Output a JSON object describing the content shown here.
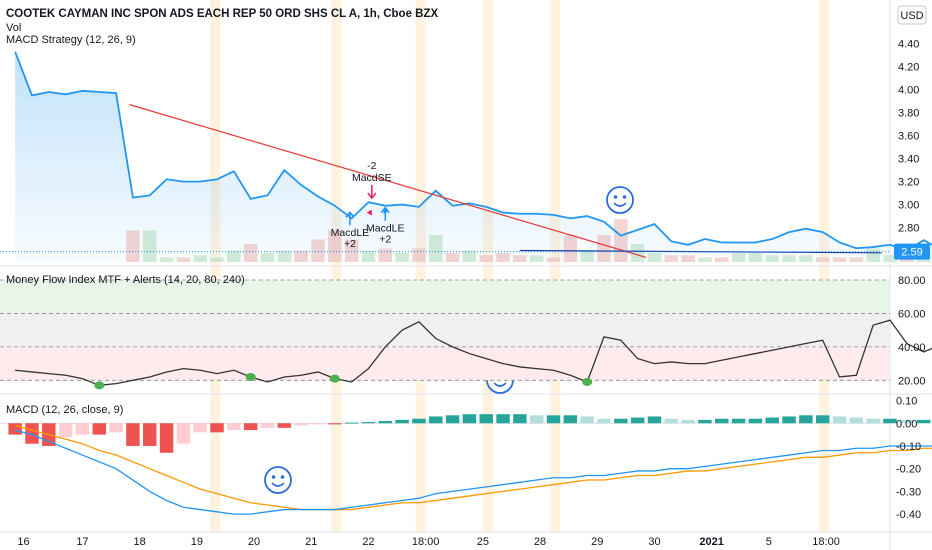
{
  "header": {
    "title": "COOTEK CAYMAN INC SPON ADS EACH REP 50 ORD SHS CL A, 1h, Cboe BZX",
    "vol_label": "Vol",
    "strategy_label": "MACD Strategy (12, 26, 9)",
    "currency_button": "USD"
  },
  "colors": {
    "price_line": "#2196f3",
    "trend_line": "#e53935",
    "macd_line": "#2196f3",
    "signal_line": "#ff9800",
    "mfi_line": "#333333",
    "hist_pos_strong": "#26a69a",
    "hist_pos_weak": "#b2dfdb",
    "hist_neg_strong": "#ef5350",
    "hist_neg_weak": "#ffcdd2",
    "mfi_marker": "#4caf50",
    "price_badge": "#2196f3",
    "session_band": "#fff3e0"
  },
  "icons": [
    "smiley-icon"
  ],
  "chart_data": [
    {
      "type": "line",
      "name": "price-pane",
      "title": "COOTEK CAYMAN INC SPON ADS EACH REP 50 ORD SHS CL A, 1h, Cboe BZX",
      "y_ticks": [
        "4.40",
        "4.20",
        "4.00",
        "3.80",
        "3.60",
        "3.40",
        "3.20",
        "3.00",
        "2.80"
      ],
      "ylim": [
        2.5,
        4.45
      ],
      "last_price_label": "2.59",
      "last_price": 2.59,
      "x_ticks": [
        "16",
        "17",
        "18",
        "19",
        "20",
        "21",
        "21",
        "22",
        "18:00",
        "25",
        "28",
        "29",
        "30",
        "2021",
        "5",
        "18:00"
      ],
      "x_tick_pos": [
        0.5,
        4,
        7.4,
        10.8,
        14.2,
        17.6,
        17.6,
        21,
        24.4,
        27.8,
        31.2,
        34.6,
        38,
        41.4,
        44.8,
        48.2
      ],
      "x_range": [
        -0.9,
        52
      ],
      "values": [
        4.33,
        3.95,
        3.98,
        3.96,
        3.99,
        3.98,
        3.97,
        3.06,
        3.08,
        3.22,
        3.2,
        3.2,
        3.22,
        3.29,
        3.05,
        3.08,
        3.3,
        3.17,
        3.07,
        2.99,
        2.88,
        3.02,
        2.99,
        3.0,
        2.98,
        3.12,
        2.99,
        3.01,
        2.98,
        2.93,
        2.92,
        2.92,
        2.91,
        2.88,
        2.9,
        2.85,
        2.73,
        2.78,
        2.83,
        2.68,
        2.65,
        2.7,
        2.67,
        2.67,
        2.67,
        2.7,
        2.76,
        2.79,
        2.76,
        2.67,
        2.62,
        2.63,
        2.65,
        2.6,
        2.69,
        2.61,
        2.58,
        2.59
      ],
      "trend_line": {
        "from": [
          6.8,
          3.87
        ],
        "to": [
          37.5,
          2.54
        ]
      },
      "support_line": {
        "from": [
          30,
          2.6
        ],
        "to": [
          51.5,
          2.58
        ]
      },
      "volume": [
        0,
        0,
        0,
        0,
        0,
        0,
        0,
        0.14,
        0.14,
        0.02,
        0.02,
        0.03,
        0.02,
        0.05,
        0.08,
        0.04,
        0.05,
        0.05,
        0.1,
        0.14,
        0.1,
        0.05,
        0.06,
        0.04,
        0.06,
        0.12,
        0.04,
        0.05,
        0.03,
        0.04,
        0.03,
        0.03,
        0.02,
        0.12,
        0.05,
        0.12,
        0.19,
        0.08,
        0.04,
        0.03,
        0.03,
        0.02,
        0.02,
        0.04,
        0.04,
        0.03,
        0.03,
        0.03,
        0.02,
        0.02,
        0.02,
        0.06,
        0.03,
        0.04,
        0.07,
        0.03,
        0.02,
        0.06
      ],
      "signals": [
        {
          "name": "MacdLE",
          "qty": "+2",
          "direction": "long",
          "x": 19.9,
          "y": 2.82
        },
        {
          "name": "MacdSE",
          "qty": "-2",
          "direction": "short",
          "x": 21.2,
          "y": 3.17
        },
        {
          "name": "MacdLE",
          "qty": "+2",
          "direction": "long",
          "x": 22.0,
          "y": 2.86
        }
      ],
      "session_bands": [
        11.6,
        18.8,
        23.8,
        27.8,
        31.8,
        47.8
      ]
    },
    {
      "type": "line",
      "name": "mfi-pane",
      "title": "Money Flow Index MTF + Alerts (14, 20, 80, 240)",
      "y_ticks": [
        "80.00",
        "60.00",
        "40.00",
        "20.00"
      ],
      "ylim": [
        13,
        86
      ],
      "bands": [
        {
          "from": 60,
          "to": 80,
          "color": "#e8f5e9"
        },
        {
          "from": 40,
          "to": 60,
          "color": "#f0f0f0"
        },
        {
          "from": 20,
          "to": 40,
          "color": "#ffebee"
        }
      ],
      "levels": [
        80,
        60,
        40,
        20
      ],
      "values": [
        26,
        25,
        24,
        23,
        21,
        17,
        18,
        20,
        22,
        25,
        27,
        26,
        24,
        26,
        22,
        19,
        22,
        23,
        25,
        21,
        19,
        27,
        40,
        50,
        55,
        45,
        40,
        36,
        33,
        30,
        28,
        27,
        26,
        23,
        19,
        46,
        44,
        33,
        30,
        31,
        30,
        30,
        32,
        34,
        36,
        38,
        40,
        42,
        44,
        22,
        23,
        53,
        56,
        42,
        37,
        41,
        24,
        37
      ],
      "markers": [
        5,
        14,
        19,
        34
      ]
    },
    {
      "type": "line",
      "name": "macd-pane",
      "title": "MACD (12, 26, close, 9)",
      "y_ticks": [
        "0.10",
        "0.00",
        "-0.10",
        "-0.20",
        "-0.30",
        "-0.40"
      ],
      "ylim": [
        -0.47,
        0.12
      ],
      "histogram": [
        -0.05,
        -0.09,
        -0.1,
        -0.06,
        -0.05,
        -0.05,
        -0.04,
        -0.1,
        -0.1,
        -0.13,
        -0.09,
        -0.04,
        -0.04,
        -0.03,
        -0.03,
        -0.02,
        -0.02,
        -0.01,
        -0.005,
        -0.005,
        0.003,
        0.005,
        0.01,
        0.015,
        0.02,
        0.03,
        0.035,
        0.04,
        0.04,
        0.04,
        0.04,
        0.035,
        0.035,
        0.035,
        0.03,
        0.02,
        0.02,
        0.025,
        0.03,
        0.02,
        0.015,
        0.015,
        0.02,
        0.02,
        0.02,
        0.025,
        0.03,
        0.035,
        0.035,
        0.03,
        0.025,
        0.02,
        0.02,
        0.015,
        0.015,
        0.015,
        0.01,
        0.01
      ],
      "macd": [
        -0.03,
        -0.05,
        -0.08,
        -0.11,
        -0.14,
        -0.17,
        -0.2,
        -0.25,
        -0.3,
        -0.34,
        -0.37,
        -0.38,
        -0.39,
        -0.4,
        -0.4,
        -0.39,
        -0.38,
        -0.38,
        -0.38,
        -0.38,
        -0.37,
        -0.36,
        -0.35,
        -0.34,
        -0.33,
        -0.31,
        -0.3,
        -0.29,
        -0.28,
        -0.27,
        -0.26,
        -0.25,
        -0.24,
        -0.24,
        -0.23,
        -0.23,
        -0.22,
        -0.21,
        -0.21,
        -0.2,
        -0.2,
        -0.19,
        -0.18,
        -0.17,
        -0.16,
        -0.15,
        -0.14,
        -0.13,
        -0.12,
        -0.12,
        -0.11,
        -0.11,
        -0.1,
        -0.1,
        -0.1,
        -0.1,
        -0.1,
        -0.11
      ],
      "signal": [
        -0.01,
        -0.03,
        -0.05,
        -0.07,
        -0.09,
        -0.12,
        -0.14,
        -0.17,
        -0.2,
        -0.23,
        -0.26,
        -0.29,
        -0.31,
        -0.33,
        -0.35,
        -0.36,
        -0.37,
        -0.38,
        -0.38,
        -0.38,
        -0.38,
        -0.37,
        -0.36,
        -0.35,
        -0.35,
        -0.34,
        -0.33,
        -0.32,
        -0.31,
        -0.3,
        -0.29,
        -0.28,
        -0.27,
        -0.26,
        -0.25,
        -0.25,
        -0.24,
        -0.23,
        -0.23,
        -0.22,
        -0.21,
        -0.21,
        -0.2,
        -0.19,
        -0.18,
        -0.17,
        -0.16,
        -0.15,
        -0.15,
        -0.14,
        -0.13,
        -0.13,
        -0.12,
        -0.12,
        -0.11,
        -0.11,
        -0.11,
        -0.11
      ]
    }
  ]
}
